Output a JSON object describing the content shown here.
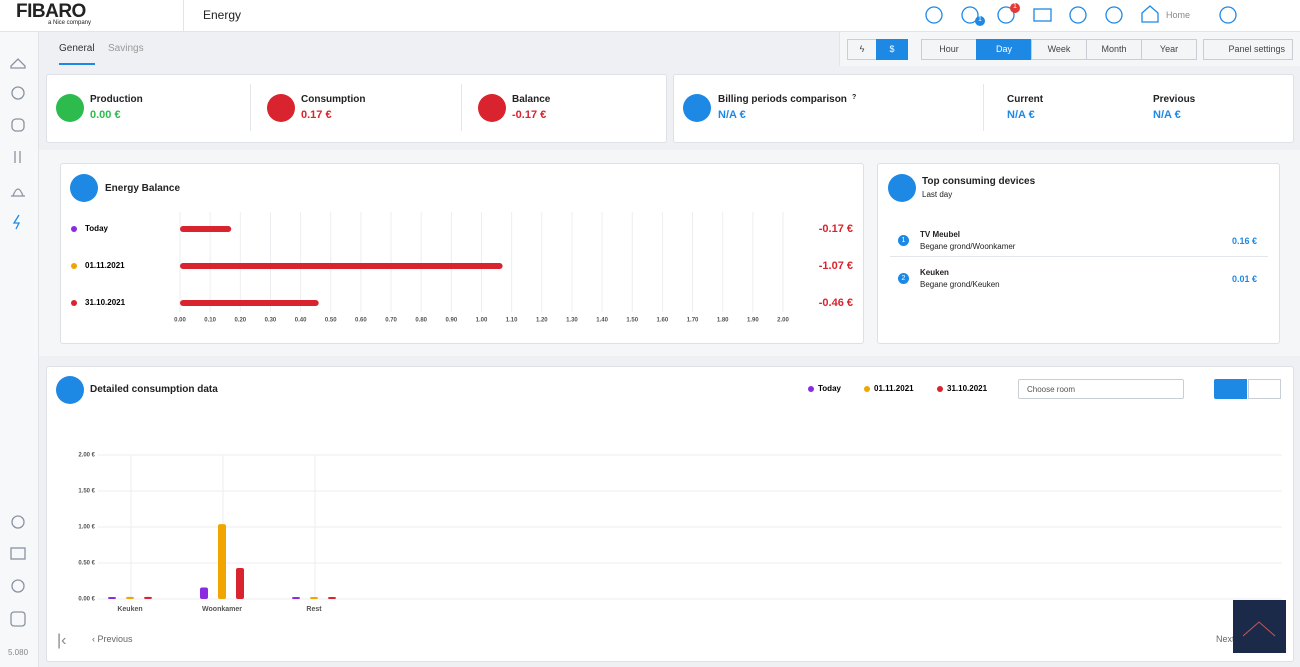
{
  "header": {
    "logo": "FIBARO",
    "logo_sub": "a Nice company",
    "title": "Energy",
    "badges": [
      "1",
      "1"
    ],
    "location": "Home"
  },
  "tabs": [
    "General",
    "Savings"
  ],
  "periods": [
    "Hour",
    "Day",
    "Week",
    "Month",
    "Year"
  ],
  "panel_settings": "Panel settings",
  "summary": [
    {
      "label": "Production",
      "value": "0.00 €"
    },
    {
      "label": "Consumption",
      "value": "0.17 €"
    },
    {
      "label": "Balance",
      "value": "-0.17 €"
    }
  ],
  "billing": {
    "title": "Billing periods comparison",
    "help": "?",
    "value": "N/A €",
    "current": {
      "label": "Current",
      "value": "N/A €"
    },
    "previous": {
      "label": "Previous",
      "value": "N/A €"
    }
  },
  "top_devices": {
    "title": "Top consuming devices",
    "subtitle": "Last day",
    "items": [
      {
        "rank": "1",
        "name": "TV Meubel",
        "location": "Begane grond/Woonkamer",
        "value": "0.16 €"
      },
      {
        "rank": "2",
        "name": "Keuken",
        "location": "Begane grond/Keuken",
        "value": "0.01 €"
      }
    ]
  },
  "room_select": "Choose room",
  "pager": {
    "previous": "Previous",
    "next": "Next"
  },
  "version": "5.080",
  "chart_data": [
    {
      "type": "hbar",
      "title": "Energy Balance",
      "categories": [
        "Today",
        "01.11.2021",
        "31.10.2021"
      ],
      "category_colors": [
        "#8a2be2",
        "#f0a500",
        "#d9232e"
      ],
      "color": "#d9232e",
      "values": [
        -0.17,
        -1.07,
        -0.46
      ],
      "value_labels": [
        "-0.17 €",
        "-1.07 €",
        "-0.46 €"
      ],
      "xlim": [
        0,
        2
      ],
      "xticks": [
        {
          "value": 0,
          "label": "0.00"
        },
        {
          "value": 0.1,
          "label": "0.10"
        },
        {
          "value": 0.2,
          "label": "0.20"
        },
        {
          "value": 0.3,
          "label": "0.30"
        },
        {
          "value": 0.4,
          "label": "0.40"
        },
        {
          "value": 0.5,
          "label": "0.50"
        },
        {
          "value": 0.6,
          "label": "0.60"
        },
        {
          "value": 0.7,
          "label": "0.70"
        },
        {
          "value": 0.8,
          "label": "0.80"
        },
        {
          "value": 0.9,
          "label": "0.90"
        },
        {
          "value": 1,
          "label": "1.00"
        },
        {
          "value": 1.1,
          "label": "1.10"
        },
        {
          "value": 1.2,
          "label": "1.20"
        },
        {
          "value": 1.3,
          "label": "1.30"
        },
        {
          "value": 1.4,
          "label": "1.40"
        },
        {
          "value": 1.5,
          "label": "1.50"
        },
        {
          "value": 1.6,
          "label": "1.60"
        },
        {
          "value": 1.7,
          "label": "1.70"
        },
        {
          "value": 1.8,
          "label": "1.80"
        },
        {
          "value": 1.9,
          "label": "1.90"
        },
        {
          "value": 2,
          "label": "2.00"
        }
      ],
      "grid": true
    },
    {
      "type": "bar",
      "title": "Detailed consumption data",
      "categories": [
        "Keuken",
        "Woonkamer",
        "Rest"
      ],
      "series": [
        {
          "name": "Today",
          "color": "#8a2be2",
          "values": [
            0.01,
            0.16,
            0
          ]
        },
        {
          "name": "01.11.2021",
          "color": "#f0a500",
          "values": [
            0.03,
            1.04,
            0
          ]
        },
        {
          "name": "31.10.2021",
          "color": "#d9232e",
          "values": [
            0.03,
            0.43,
            0
          ]
        }
      ],
      "ylim": [
        0,
        2
      ],
      "yticks": [
        {
          "value": 0,
          "label": "0.00 €"
        },
        {
          "value": 0.5,
          "label": "0.50 €"
        },
        {
          "value": 1,
          "label": "1.00 €"
        },
        {
          "value": 1.5,
          "label": "1.50 €"
        },
        {
          "value": 2,
          "label": "2.00 €"
        }
      ],
      "grid": true
    }
  ]
}
